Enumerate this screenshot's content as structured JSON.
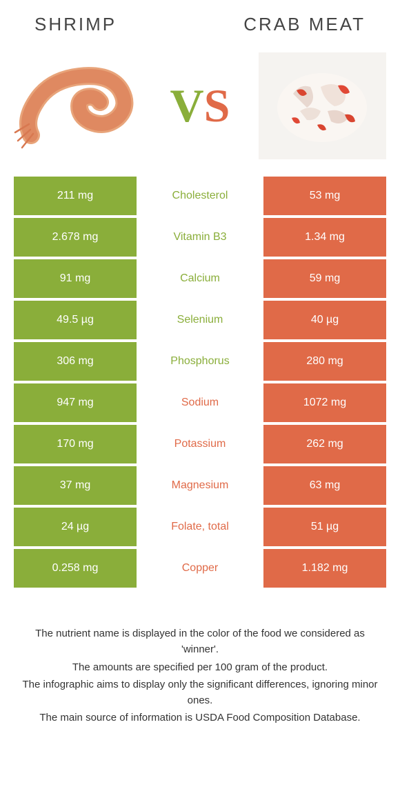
{
  "colors": {
    "left": "#8aae3a",
    "right": "#e06a48",
    "text": "#333333",
    "header_text": "#444444"
  },
  "food_left": {
    "name": "Shrimp"
  },
  "food_right": {
    "name": "Crab meat"
  },
  "vs_label": {
    "v": "V",
    "s": "S"
  },
  "rows": [
    {
      "left": "211 mg",
      "label": "Cholesterol",
      "right": "53 mg",
      "winner": "left"
    },
    {
      "left": "2.678 mg",
      "label": "Vitamin B3",
      "right": "1.34 mg",
      "winner": "left"
    },
    {
      "left": "91 mg",
      "label": "Calcium",
      "right": "59 mg",
      "winner": "left"
    },
    {
      "left": "49.5 µg",
      "label": "Selenium",
      "right": "40 µg",
      "winner": "left"
    },
    {
      "left": "306 mg",
      "label": "Phosphorus",
      "right": "280 mg",
      "winner": "left"
    },
    {
      "left": "947 mg",
      "label": "Sodium",
      "right": "1072 mg",
      "winner": "right"
    },
    {
      "left": "170 mg",
      "label": "Potassium",
      "right": "262 mg",
      "winner": "right"
    },
    {
      "left": "37 mg",
      "label": "Magnesium",
      "right": "63 mg",
      "winner": "right"
    },
    {
      "left": "24 µg",
      "label": "Folate, total",
      "right": "51 µg",
      "winner": "right"
    },
    {
      "left": "0.258 mg",
      "label": "Copper",
      "right": "1.182 mg",
      "winner": "right"
    }
  ],
  "notes": [
    "The nutrient name is displayed in the color of the food we considered as 'winner'.",
    "The amounts are specified per 100 gram of the product.",
    "The infographic aims to display only the significant differences, ignoring minor ones.",
    "The main source of information is USDA Food Composition Database."
  ]
}
